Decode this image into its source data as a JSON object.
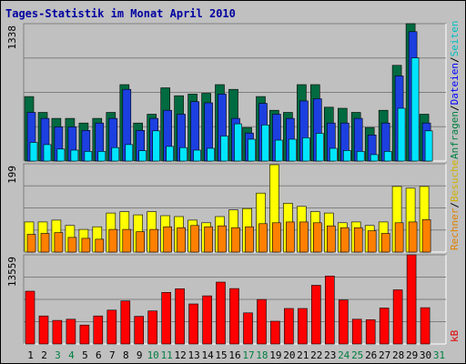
{
  "title": "Tages-Statistik im Monat April 2010",
  "colors": {
    "title": "#0000a0",
    "grid": "#808080",
    "panel_bg": "#c0c0c0",
    "anfragen": "#006a40",
    "dateien": "#1c3fe0",
    "seiten": "#00e5ff",
    "besuche": "#ffff00",
    "rechner": "#ff8000",
    "kb": "#ff0000",
    "label_green": "#008040",
    "label_blue": "#0000ff",
    "label_cyan": "#00c0c0",
    "label_yellow": "#d0b000",
    "label_orange": "#e08000",
    "label_red": "#e00000",
    "weekday": "#000000",
    "weekend": "#008040"
  },
  "chart_data": [
    {
      "type": "bar",
      "panel": "top",
      "y_max_label": "1338",
      "ylim": [
        0,
        1338
      ],
      "right_labels": [
        {
          "text": "Anfragen",
          "color": "#008040"
        },
        {
          "text": "/",
          "color": "#000000"
        },
        {
          "text": "Dateien",
          "color": "#0000ff"
        },
        {
          "text": "/",
          "color": "#000000"
        },
        {
          "text": "Seiten",
          "color": "#00c0c0"
        }
      ],
      "categories": [
        "1",
        "2",
        "3",
        "4",
        "5",
        "6",
        "7",
        "8",
        "9",
        "10",
        "11",
        "12",
        "13",
        "14",
        "15",
        "16",
        "17",
        "18",
        "19",
        "20",
        "21",
        "22",
        "23",
        "24",
        "25",
        "26",
        "27",
        "28",
        "29",
        "30",
        "31"
      ],
      "series": [
        {
          "name": "Anfragen",
          "color": "#006a40",
          "values": [
            628,
            474,
            416,
            416,
            370,
            416,
            474,
            744,
            370,
            456,
            713,
            636,
            652,
            660,
            744,
            698,
            327,
            628,
            494,
            474,
            744,
            744,
            525,
            514,
            474,
            327,
            494,
            932,
            1338,
            456,
            0
          ]
        },
        {
          "name": "Dateien",
          "color": "#1c3fe0",
          "values": [
            474,
            416,
            333,
            333,
            299,
            370,
            416,
            698,
            299,
            416,
            494,
            456,
            579,
            567,
            652,
            416,
            273,
            562,
            456,
            416,
            586,
            607,
            370,
            370,
            416,
            254,
            370,
            829,
            1260,
            370,
            0
          ]
        },
        {
          "name": "Seiten",
          "color": "#00e5ff",
          "values": [
            182,
            160,
            117,
            106,
            94,
            94,
            131,
            160,
            101,
            294,
            143,
            131,
            106,
            124,
            244,
            362,
            213,
            352,
            204,
            213,
            227,
            270,
            124,
            103,
            94,
            63,
            94,
            514,
            1005,
            294,
            0
          ]
        }
      ]
    },
    {
      "type": "bar",
      "panel": "middle",
      "y_max_label": "199",
      "ylim": [
        0,
        199
      ],
      "right_labels": [
        {
          "text": "Rechner",
          "color": "#e08000"
        },
        {
          "text": "/",
          "color": "#000000"
        },
        {
          "text": "Besuche",
          "color": "#d0b000"
        }
      ],
      "categories": [
        "1",
        "2",
        "3",
        "4",
        "5",
        "6",
        "7",
        "8",
        "9",
        "10",
        "11",
        "12",
        "13",
        "14",
        "15",
        "16",
        "17",
        "18",
        "19",
        "20",
        "21",
        "22",
        "23",
        "24",
        "25",
        "26",
        "27",
        "28",
        "29",
        "30",
        "31"
      ],
      "series": [
        {
          "name": "Besuche",
          "color": "#ffff00",
          "values": [
            68,
            68,
            72,
            60,
            51,
            57,
            88,
            91,
            84,
            91,
            82,
            80,
            72,
            66,
            80,
            95,
            98,
            133,
            197,
            110,
            103,
            91,
            88,
            66,
            68,
            60,
            68,
            148,
            144,
            148,
            0
          ]
        },
        {
          "name": "Rechner",
          "color": "#ff8000",
          "values": [
            40,
            42,
            44,
            33,
            31,
            29,
            51,
            51,
            46,
            51,
            57,
            55,
            60,
            57,
            59,
            55,
            57,
            64,
            66,
            68,
            68,
            66,
            59,
            55,
            55,
            48,
            42,
            66,
            68,
            73,
            0
          ]
        }
      ]
    },
    {
      "type": "bar",
      "panel": "bottom",
      "y_max_label": "13559",
      "ylim": [
        0,
        13559
      ],
      "right_labels": [
        {
          "text": "kB",
          "color": "#e00000"
        }
      ],
      "categories": [
        "1",
        "2",
        "3",
        "4",
        "5",
        "6",
        "7",
        "8",
        "9",
        "10",
        "11",
        "12",
        "13",
        "14",
        "15",
        "16",
        "17",
        "18",
        "19",
        "20",
        "21",
        "22",
        "23",
        "24",
        "25",
        "26",
        "27",
        "28",
        "29",
        "30",
        "31"
      ],
      "series": [
        {
          "name": "kB",
          "color": "#ff0000",
          "values": [
            8030,
            4260,
            3590,
            3760,
            2880,
            4260,
            5150,
            6540,
            4210,
            5020,
            7840,
            8400,
            6090,
            7320,
            9410,
            8430,
            4730,
            6760,
            3460,
            5400,
            5400,
            8930,
            10340,
            6690,
            3770,
            3690,
            5460,
            8230,
            13559,
            5520,
            0
          ]
        }
      ]
    }
  ],
  "x_axis": {
    "days": [
      {
        "label": "1",
        "weekend": false
      },
      {
        "label": "2",
        "weekend": false
      },
      {
        "label": "3",
        "weekend": true
      },
      {
        "label": "4",
        "weekend": true
      },
      {
        "label": "5",
        "weekend": false
      },
      {
        "label": "6",
        "weekend": false
      },
      {
        "label": "7",
        "weekend": false
      },
      {
        "label": "8",
        "weekend": false
      },
      {
        "label": "9",
        "weekend": false
      },
      {
        "label": "10",
        "weekend": true
      },
      {
        "label": "11",
        "weekend": true
      },
      {
        "label": "12",
        "weekend": false
      },
      {
        "label": "13",
        "weekend": false
      },
      {
        "label": "14",
        "weekend": false
      },
      {
        "label": "15",
        "weekend": false
      },
      {
        "label": "16",
        "weekend": false
      },
      {
        "label": "17",
        "weekend": true
      },
      {
        "label": "18",
        "weekend": true
      },
      {
        "label": "19",
        "weekend": false
      },
      {
        "label": "20",
        "weekend": false
      },
      {
        "label": "21",
        "weekend": false
      },
      {
        "label": "22",
        "weekend": false
      },
      {
        "label": "23",
        "weekend": false
      },
      {
        "label": "24",
        "weekend": true
      },
      {
        "label": "25",
        "weekend": true
      },
      {
        "label": "26",
        "weekend": false
      },
      {
        "label": "27",
        "weekend": false
      },
      {
        "label": "28",
        "weekend": false
      },
      {
        "label": "29",
        "weekend": false
      },
      {
        "label": "30",
        "weekend": false
      },
      {
        "label": "31",
        "weekend": true
      }
    ]
  }
}
